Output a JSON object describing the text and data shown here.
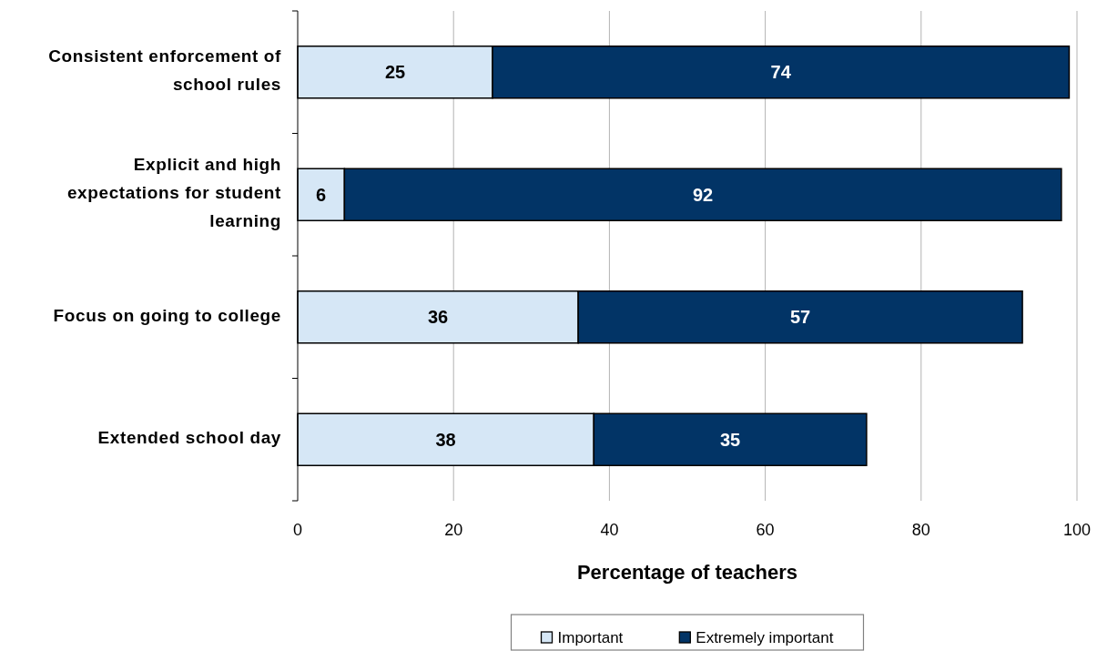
{
  "chart_data": {
    "type": "bar",
    "orientation": "horizontal",
    "stacked": true,
    "categories": [
      "Consistent enforcement of school rules",
      "Explicit and high expectations for student learning",
      "Focus on going to college",
      "Extended school day"
    ],
    "series": [
      {
        "name": "Important",
        "color": "#d6e7f6",
        "values": [
          25,
          6,
          36,
          38
        ]
      },
      {
        "name": "Extremely important",
        "color": "#023466",
        "values": [
          74,
          92,
          57,
          35
        ]
      }
    ],
    "xlabel": "Percentage of teachers",
    "xlim": [
      0,
      100
    ],
    "xticks": [
      0,
      20,
      40,
      60,
      80,
      100
    ],
    "grid": "x",
    "legend": "bottom",
    "data_labels": true
  }
}
